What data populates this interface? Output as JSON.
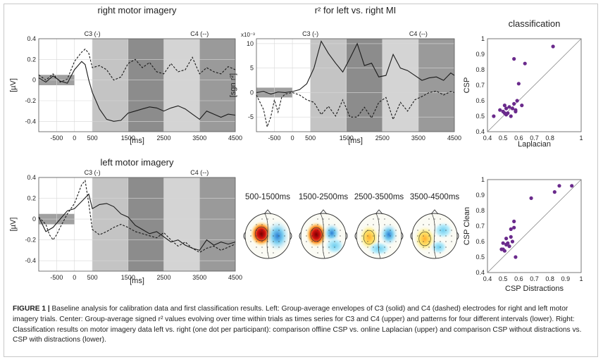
{
  "chart_data": [
    {
      "type": "line",
      "title": "right motor imagery",
      "xlabel": "[ms]",
      "ylabel": "[µV]",
      "xlim": [
        -1000,
        4500
      ],
      "ylim": [
        -0.5,
        0.4
      ],
      "xticks": [
        "-500",
        "0",
        "500",
        "1500",
        "2500",
        "3500",
        "4500"
      ],
      "xtick_values": [
        -500,
        0,
        500,
        1500,
        2500,
        3500,
        4500
      ],
      "yticks": [
        "0.4",
        "0.2",
        "0",
        "-0.2",
        "-0.4"
      ],
      "ytick_values": [
        0.4,
        0.2,
        0,
        -0.2,
        -0.4
      ],
      "grid": true,
      "band_labels": [
        {
          "text": "C3 (-)",
          "x": 500
        },
        {
          "text": "C4 (--)",
          "x": 3500
        }
      ],
      "series": [
        {
          "name": "C3",
          "style": "solid",
          "x": [
            -1000,
            -800,
            -600,
            -400,
            -200,
            0,
            200,
            300,
            400,
            500,
            700,
            900,
            1100,
            1300,
            1500,
            1700,
            1900,
            2100,
            2300,
            2500,
            2700,
            2900,
            3100,
            3300,
            3500,
            3700,
            3900,
            4100,
            4300,
            4500
          ],
          "y": [
            0.02,
            -0.02,
            0.04,
            -0.01,
            -0.03,
            0.1,
            0.18,
            0.15,
            0.0,
            -0.12,
            -0.28,
            -0.38,
            -0.4,
            -0.39,
            -0.32,
            -0.3,
            -0.28,
            -0.26,
            -0.27,
            -0.3,
            -0.27,
            -0.25,
            -0.28,
            -0.33,
            -0.38,
            -0.3,
            -0.33,
            -0.36,
            -0.33,
            -0.34
          ]
        },
        {
          "name": "C4",
          "style": "dashed",
          "x": [
            -1000,
            -800,
            -600,
            -400,
            -200,
            0,
            200,
            300,
            400,
            500,
            700,
            900,
            1100,
            1300,
            1500,
            1700,
            1900,
            2100,
            2300,
            2500,
            2700,
            2900,
            3100,
            3300,
            3500,
            3700,
            3900,
            4100,
            4300,
            4500
          ],
          "y": [
            0.05,
            0.0,
            0.06,
            -0.02,
            0.01,
            0.18,
            0.27,
            0.3,
            0.26,
            0.12,
            0.14,
            0.1,
            0.0,
            0.03,
            0.16,
            0.2,
            0.12,
            0.17,
            0.08,
            0.06,
            0.16,
            0.08,
            0.1,
            0.22,
            0.06,
            0.12,
            0.08,
            0.06,
            0.13,
            0.1
          ]
        }
      ],
      "highlights": [
        {
          "range": [
            -1000,
            0
          ],
          "y": [
            0.05,
            -0.05
          ],
          "color": "#a0a0a0"
        },
        {
          "range": [
            500,
            1500
          ],
          "color": "#c4c4c4"
        },
        {
          "range": [
            1500,
            2500
          ],
          "color": "#8c8c8c"
        },
        {
          "range": [
            2500,
            3500
          ],
          "color": "#d4d4d4"
        },
        {
          "range": [
            3500,
            4500
          ],
          "color": "#9a9a9a"
        }
      ]
    },
    {
      "type": "line",
      "title": "r² for left vs. right MI",
      "xlabel": "[ms]",
      "ylabel": "[sgn r²]",
      "scale_note": "x10⁻³",
      "xlim": [
        -1000,
        4500
      ],
      "ylim": [
        -8,
        11
      ],
      "xticks": [
        "-500",
        "0",
        "500",
        "1500",
        "2500",
        "3500",
        "4500"
      ],
      "xtick_values": [
        -500,
        0,
        500,
        1500,
        2500,
        3500,
        4500
      ],
      "yticks": [
        "10",
        "5",
        "0",
        "-5"
      ],
      "ytick_values": [
        10,
        5,
        0,
        -5
      ],
      "grid": true,
      "band_labels": [
        {
          "text": "C3 (-)",
          "x": 500
        },
        {
          "text": "C4 (--)",
          "x": 3500
        }
      ],
      "series": [
        {
          "name": "C3",
          "style": "solid",
          "x": [
            -1000,
            -800,
            -600,
            -400,
            -200,
            0,
            200,
            400,
            600,
            800,
            1000,
            1200,
            1400,
            1600,
            1800,
            2000,
            2200,
            2400,
            2600,
            2800,
            3000,
            3200,
            3400,
            3600,
            3800,
            4000,
            4200,
            4400,
            4500
          ],
          "y": [
            0,
            0.2,
            -0.3,
            0.1,
            0,
            0.2,
            0.6,
            1.8,
            5,
            10.5,
            8,
            6,
            4.2,
            7,
            10,
            5.5,
            6,
            3.2,
            3.5,
            7.8,
            5,
            4.5,
            3.5,
            2.5,
            3,
            3.2,
            2.5,
            4,
            3.5
          ]
        },
        {
          "name": "C4",
          "style": "dashed",
          "x": [
            -1000,
            -900,
            -800,
            -700,
            -600,
            -500,
            -400,
            -300,
            -200,
            0,
            200,
            400,
            600,
            800,
            1000,
            1200,
            1400,
            1600,
            1800,
            2000,
            2200,
            2400,
            2600,
            2800,
            3000,
            3200,
            3400,
            3600,
            3800,
            4000,
            4200,
            4400,
            4500
          ],
          "y": [
            -0.5,
            -2,
            -3.5,
            -7,
            -5,
            -1.5,
            -4,
            -1,
            -0.3,
            0,
            -0.5,
            -1.5,
            -2,
            -4.5,
            -2.8,
            -4.8,
            -1.5,
            -5,
            -5,
            -3,
            -5.2,
            -2,
            -1,
            -5.5,
            -2,
            -3.8,
            -1.5,
            -0.8,
            0,
            0.3,
            -0.5,
            0.2,
            0
          ]
        }
      ],
      "highlights": [
        {
          "range": [
            -1000,
            0
          ],
          "y": [
            1,
            -1
          ],
          "color": "#a0a0a0"
        },
        {
          "range": [
            500,
            1500
          ],
          "color": "#c4c4c4"
        },
        {
          "range": [
            1500,
            2500
          ],
          "color": "#8c8c8c"
        },
        {
          "range": [
            2500,
            3500
          ],
          "color": "#d4d4d4"
        },
        {
          "range": [
            3500,
            4500
          ],
          "color": "#9a9a9a"
        }
      ]
    },
    {
      "type": "scatter",
      "title": "classification",
      "xlabel": "Laplacian",
      "ylabel": "CSP",
      "xlim": [
        0.4,
        1
      ],
      "ylim": [
        0.4,
        1
      ],
      "ticks": [
        "0.4",
        "0.5",
        "0.6",
        "0.7",
        "0.8",
        "0.9",
        "1"
      ],
      "tick_values": [
        0.4,
        0.5,
        0.6,
        0.7,
        0.8,
        0.9,
        1
      ],
      "xtick_labels": [
        "0.4",
        "0.5",
        "0.6",
        "0.7",
        "0.8",
        "1"
      ],
      "xtick_label_values": [
        0.4,
        0.5,
        0.6,
        0.7,
        0.8,
        1
      ],
      "diagonal": true,
      "color": "#6a2a8c",
      "x": [
        0.44,
        0.48,
        0.5,
        0.51,
        0.51,
        0.52,
        0.52,
        0.53,
        0.54,
        0.55,
        0.56,
        0.57,
        0.57,
        0.58,
        0.58,
        0.59,
        0.6,
        0.62,
        0.64,
        0.82
      ],
      "y": [
        0.5,
        0.54,
        0.53,
        0.57,
        0.52,
        0.55,
        0.51,
        0.52,
        0.56,
        0.5,
        0.55,
        0.58,
        0.87,
        0.54,
        0.53,
        0.6,
        0.71,
        0.57,
        0.84,
        0.95
      ]
    },
    {
      "type": "line",
      "title": "left motor imagery",
      "xlabel": "[ms]",
      "ylabel": "[µV]",
      "xlim": [
        -1000,
        4500
      ],
      "ylim": [
        -0.5,
        0.4
      ],
      "xticks": [
        "-500",
        "0",
        "500",
        "1500",
        "2500",
        "3500",
        "4500"
      ],
      "xtick_values": [
        -500,
        0,
        500,
        1500,
        2500,
        3500,
        4500
      ],
      "yticks": [
        "0.4",
        "0.2",
        "0",
        "-0.2",
        "-0.4"
      ],
      "ytick_values": [
        0.4,
        0.2,
        0,
        -0.2,
        -0.4
      ],
      "grid": true,
      "band_labels": [
        {
          "text": "C3 (-)",
          "x": 500
        },
        {
          "text": "C4 (--)",
          "x": 3500
        }
      ],
      "series": [
        {
          "name": "C3",
          "style": "solid",
          "x": [
            -1000,
            -900,
            -800,
            -600,
            -400,
            -200,
            0,
            200,
            400,
            500,
            700,
            900,
            1100,
            1300,
            1500,
            1700,
            1900,
            2100,
            2300,
            2500,
            2700,
            2900,
            3100,
            3300,
            3500,
            3700,
            3900,
            4100,
            4300,
            4500
          ],
          "y": [
            0.02,
            -0.05,
            -0.12,
            -0.08,
            0.0,
            0.08,
            0.1,
            0.17,
            0.24,
            0.1,
            0.14,
            0.15,
            0.12,
            0.05,
            0.02,
            -0.06,
            -0.1,
            -0.14,
            -0.12,
            -0.17,
            -0.22,
            -0.2,
            -0.25,
            -0.28,
            -0.3,
            -0.2,
            -0.25,
            -0.22,
            -0.24,
            -0.22
          ]
        },
        {
          "name": "C4",
          "style": "dashed",
          "x": [
            -1000,
            -800,
            -700,
            -600,
            -500,
            -400,
            -200,
            0,
            200,
            300,
            400,
            500,
            700,
            900,
            1100,
            1300,
            1500,
            1700,
            1900,
            2100,
            2300,
            2500,
            2700,
            2900,
            3100,
            3300,
            3500,
            3700,
            3900,
            4100,
            4300,
            4500
          ],
          "y": [
            0.02,
            -0.05,
            -0.15,
            -0.2,
            -0.15,
            -0.08,
            0.05,
            0.15,
            0.33,
            0.37,
            0.15,
            -0.1,
            -0.15,
            -0.12,
            -0.08,
            -0.05,
            -0.08,
            -0.12,
            -0.14,
            -0.16,
            -0.18,
            -0.13,
            -0.2,
            -0.26,
            -0.22,
            -0.28,
            -0.32,
            -0.28,
            -0.26,
            -0.3,
            -0.27,
            -0.24
          ]
        }
      ],
      "highlights": [
        {
          "range": [
            -1000,
            0
          ],
          "y": [
            0.05,
            -0.05
          ],
          "color": "#a0a0a0"
        },
        {
          "range": [
            500,
            1500
          ],
          "color": "#c4c4c4"
        },
        {
          "range": [
            1500,
            2500
          ],
          "color": "#8c8c8c"
        },
        {
          "range": [
            2500,
            3500
          ],
          "color": "#d4d4d4"
        },
        {
          "range": [
            3500,
            4500
          ],
          "color": "#9a9a9a"
        }
      ]
    },
    {
      "type": "scatter",
      "title": "",
      "xlabel": "CSP Distractions",
      "ylabel": "CSP Clean",
      "xlim": [
        0.4,
        1
      ],
      "ylim": [
        0.4,
        1
      ],
      "ticks": [
        "0.4",
        "0.5",
        "0.6",
        "0.7",
        "0.8",
        "0.9",
        "1"
      ],
      "tick_values": [
        0.4,
        0.5,
        0.6,
        0.7,
        0.8,
        0.9,
        1
      ],
      "xtick_labels": [
        "0.4",
        "0.5",
        "0.6",
        "0.7",
        "0.8",
        "0.9",
        "1"
      ],
      "xtick_label_values": [
        0.4,
        0.5,
        0.6,
        0.7,
        0.8,
        0.9,
        1
      ],
      "diagonal": true,
      "color": "#6a2a8c",
      "x": [
        0.49,
        0.5,
        0.5,
        0.51,
        0.52,
        0.52,
        0.53,
        0.54,
        0.55,
        0.55,
        0.56,
        0.57,
        0.57,
        0.58,
        0.68,
        0.83,
        0.86,
        0.94
      ],
      "y": [
        0.55,
        0.55,
        0.59,
        0.54,
        0.62,
        0.58,
        0.59,
        0.57,
        0.63,
        0.68,
        0.6,
        0.73,
        0.69,
        0.5,
        0.88,
        0.92,
        0.96,
        0.96
      ]
    }
  ],
  "topomaps": {
    "labels": [
      "500-1500ms",
      "1500-2500ms",
      "2500-3500ms",
      "3500-4500ms"
    ]
  },
  "caption": {
    "label": "FIGURE 1 |",
    "text": " Baseline analysis for calibration data and first classification results. Left: Group-average envelopes of C3 (solid) and C4 (dashed) electrodes for right and left motor imagery trials. Center: Group-average signed r² values evolving over time within trials as times series for C3 and C4 (upper) and patterns for four different intervals (lower). Right: Classification results on motor imagery data left vs. right (one dot per participant): comparison offline CSP vs. online Laplacian (upper) and comparison CSP without distractions vs. CSP with distractions (lower)."
  }
}
